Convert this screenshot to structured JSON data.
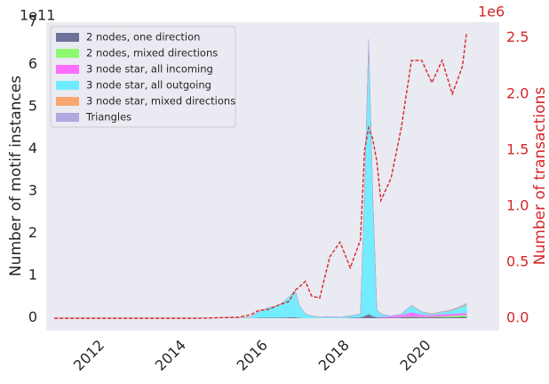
{
  "chart_data": {
    "type": "stacked_area_line",
    "ylabel": "Number of motif instances",
    "y2label": "Number of transactions",
    "y_offset_label": "1e11",
    "y2_offset_label": "1e6",
    "x": [
      2011.0,
      2011.5,
      2012,
      2012.5,
      2013,
      2013.5,
      2014,
      2014.5,
      2015,
      2015.5,
      2015.8,
      2016.0,
      2016.25,
      2016.5,
      2016.75,
      2016.9,
      2017.0,
      2017.15,
      2017.3,
      2017.5,
      2017.75,
      2018.0,
      2018.25,
      2018.5,
      2018.6,
      2018.7,
      2018.8,
      2018.9,
      2019.0,
      2019.25,
      2019.5,
      2019.75,
      2020.0,
      2020.25,
      2020.5,
      2020.75,
      2021.0,
      2021.1
    ],
    "series": [
      {
        "name": "2 nodes, one direction",
        "color": "#6e7099",
        "values": [
          0,
          0,
          0,
          0,
          0,
          0,
          0,
          0,
          0,
          0,
          0,
          0.01,
          0.01,
          0.01,
          0.02,
          0.02,
          0.01,
          0,
          0,
          0,
          0,
          0,
          0.01,
          0.02,
          0.05,
          0.1,
          0.05,
          0.02,
          0.01,
          0.01,
          0.02,
          0.03,
          0.02,
          0.02,
          0.02,
          0.02,
          0.03,
          0.03
        ]
      },
      {
        "name": "2 nodes, mixed directions",
        "color": "#8cfa6e",
        "values": [
          0,
          0,
          0,
          0,
          0,
          0,
          0,
          0,
          0,
          0,
          0,
          0,
          0,
          0,
          0,
          0,
          0,
          0,
          0,
          0,
          0,
          0,
          0,
          0,
          0,
          0,
          0,
          0,
          0,
          0,
          0,
          0.01,
          0.01,
          0.01,
          0.02,
          0.03,
          0.04,
          0.04
        ]
      },
      {
        "name": "3 node star, all incoming",
        "color": "#ff6eff",
        "values": [
          0,
          0,
          0,
          0,
          0,
          0,
          0,
          0,
          0,
          0,
          0,
          0,
          0,
          0,
          0,
          0,
          0,
          0,
          0,
          0,
          0,
          0,
          0,
          0,
          0,
          0,
          0,
          0,
          0.02,
          0.03,
          0.05,
          0.1,
          0.05,
          0.04,
          0.05,
          0.05,
          0.05,
          0.05
        ]
      },
      {
        "name": "3 node star, all outgoing",
        "color": "#6eecff",
        "values": [
          0,
          0,
          0,
          0,
          0,
          0,
          0,
          0,
          0,
          0,
          0.02,
          0.14,
          0.24,
          0.29,
          0.48,
          0.63,
          0.29,
          0.1,
          0.05,
          0.02,
          0.03,
          0.02,
          0.04,
          0.08,
          2.9,
          6.4,
          2.9,
          0.17,
          0.06,
          0.01,
          0.02,
          0.15,
          0.06,
          0.02,
          0.05,
          0.08,
          0.15,
          0.2
        ]
      },
      {
        "name": "3 node star, mixed directions",
        "color": "#f7a76e",
        "values": [
          0,
          0,
          0,
          0,
          0,
          0,
          0,
          0,
          0,
          0,
          0,
          0,
          0,
          0,
          0,
          0,
          0,
          0,
          0,
          0,
          0,
          0,
          0,
          0,
          0,
          0,
          0,
          0,
          0,
          0,
          0,
          0.01,
          0.01,
          0.01,
          0.01,
          0.01,
          0.02,
          0.02
        ]
      },
      {
        "name": "Triangles",
        "color": "#b3a8e0",
        "values": [
          0,
          0,
          0,
          0,
          0,
          0,
          0,
          0,
          0,
          0,
          0,
          0,
          0,
          0,
          0,
          0,
          0,
          0,
          0,
          0,
          0,
          0,
          0,
          0,
          0.05,
          0.1,
          0.05,
          0.01,
          0.01,
          0,
          0.01,
          0,
          0,
          0,
          0,
          0.01,
          0.01,
          0.01
        ]
      },
      {
        "name": "Number of transactions",
        "color": "#d62728",
        "axis": "y2",
        "values": [
          0,
          0,
          0,
          0,
          0,
          0,
          0,
          0,
          0.005,
          0.01,
          0.03,
          0.07,
          0.08,
          0.12,
          0.15,
          0.25,
          0.28,
          0.33,
          0.2,
          0.18,
          0.55,
          0.68,
          0.45,
          0.7,
          1.5,
          1.7,
          1.6,
          1.4,
          1.05,
          1.25,
          1.7,
          2.3,
          2.3,
          2.1,
          2.3,
          2.0,
          2.25,
          2.55
        ]
      }
    ],
    "xlim": [
      2010.8,
      2021.9
    ],
    "xticks": [
      2012,
      2014,
      2016,
      2018,
      2020
    ],
    "ylim": [
      -0.3,
      7
    ],
    "yticks": [
      0,
      1,
      2,
      3,
      4,
      5,
      6,
      7
    ],
    "y2lim": [
      -0.11,
      2.64
    ],
    "y2ticks": [
      0.0,
      0.5,
      1.0,
      1.5,
      2.0,
      2.5
    ],
    "y2tick_labels": [
      "0.0",
      "0.5",
      "1.0",
      "1.5",
      "2.0",
      "2.5"
    ],
    "legend": "upper left"
  }
}
